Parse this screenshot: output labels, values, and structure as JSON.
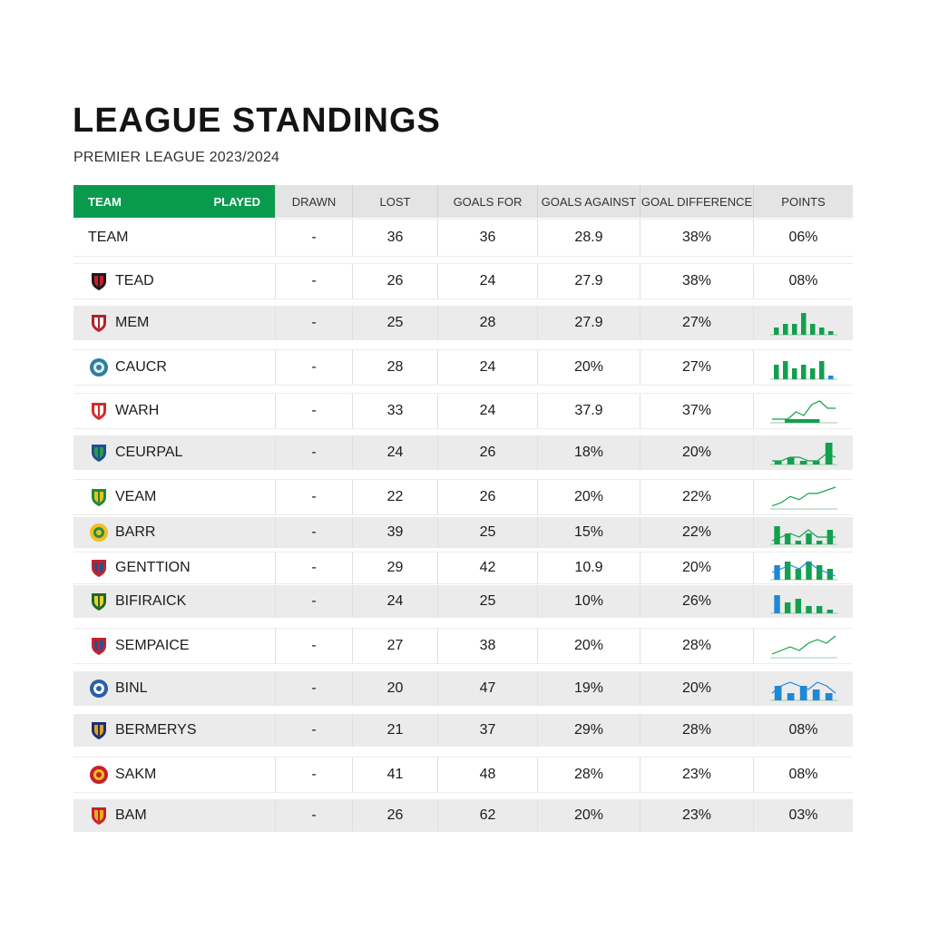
{
  "page": {
    "title": "LEAGUE STANDINGS",
    "subtitle": "PREMIER LEAGUE 2023/2024"
  },
  "colors": {
    "accent_green": "#0a9a4d",
    "spark_green": "#12a04e",
    "spark_blue": "#1e88d6",
    "header_gray": "#e4e4e4",
    "row_shade": "#ebebeb"
  },
  "table": {
    "headers": {
      "team": "TEAM",
      "played": "PLAYED",
      "drawn": "DRAWN",
      "lost": "LOST",
      "goals_for": "GOALS FOR",
      "goals_against": "GOALS AGAINST",
      "goal_difference": "GOAL DIFFERENCE",
      "points": "POINTS"
    },
    "rows": [
      {
        "team": "TEAM",
        "crest": "none",
        "drawn": "-",
        "lost": "36",
        "goals_for": "36",
        "goals_against": "28.9",
        "goal_difference": "38%",
        "points": "06%",
        "spark": null
      },
      {
        "team": "TEAD",
        "crest": "shield-black-red-crest-icon",
        "drawn": "-",
        "lost": "26",
        "goals_for": "24",
        "goals_against": "27.9",
        "goal_difference": "38%",
        "points": "08%",
        "spark": null
      },
      {
        "team": "MEM",
        "crest": "shield-red-cross-crest-icon",
        "drawn": "-",
        "lost": "25",
        "goals_for": "28",
        "goals_against": "27.9",
        "goal_difference": "27%",
        "points": "",
        "spark": {
          "type": "bars",
          "values": [
            2,
            3,
            3,
            6,
            3,
            2,
            1
          ],
          "blue_last": false
        }
      },
      {
        "team": "CAUCR",
        "crest": "round-blue-crest-icon",
        "drawn": "-",
        "lost": "28",
        "goals_for": "24",
        "goals_against": "20%",
        "goal_difference": "27%",
        "points": "",
        "spark": {
          "type": "bars",
          "values": [
            4,
            5,
            3,
            4,
            3,
            5,
            1
          ],
          "blue_last": true
        }
      },
      {
        "team": "WARH",
        "crest": "red-cockerel-crest-icon",
        "drawn": "-",
        "lost": "33",
        "goals_for": "24",
        "goals_against": "37.9",
        "goal_difference": "37%",
        "points": "",
        "spark": {
          "type": "line",
          "values": [
            1,
            1,
            1,
            3,
            2,
            5,
            6,
            4,
            4
          ],
          "bars": [
            1
          ]
        }
      },
      {
        "team": "CEURPAL",
        "crest": "shield-blue-green-crest-icon",
        "drawn": "-",
        "lost": "24",
        "goals_for": "26",
        "goals_against": "18%",
        "goal_difference": "20%",
        "points": "",
        "spark": {
          "type": "mixed",
          "values": [
            1,
            1,
            2,
            2,
            1,
            1,
            3,
            2
          ],
          "bars": [
            1,
            2,
            1,
            1,
            6
          ]
        }
      },
      {
        "team": "VEAM",
        "crest": "shield-green-yellow-crest-icon",
        "drawn": "-",
        "lost": "22",
        "goals_for": "26",
        "goals_against": "20%",
        "goal_difference": "22%",
        "points": "",
        "spark": {
          "type": "line",
          "values": [
            1,
            2,
            4,
            3,
            5,
            5,
            6,
            7
          ],
          "bars": []
        }
      },
      {
        "team": "BARR",
        "crest": "round-yellow-crest-icon",
        "drawn": "-",
        "lost": "39",
        "goals_for": "25",
        "goals_against": "15%",
        "goal_difference": "22%",
        "points": "",
        "spark": {
          "type": "mixed",
          "values": [
            1,
            2,
            3,
            2,
            4,
            2,
            2,
            2
          ],
          "bars": [
            5,
            3,
            1,
            3,
            1,
            4
          ]
        }
      },
      {
        "team": "GENTTION",
        "crest": "shield-red-blue-crest-icon",
        "drawn": "-",
        "lost": "29",
        "goals_for": "42",
        "goals_against": "10.9",
        "goal_difference": "20%",
        "points": "",
        "spark": {
          "type": "mixed",
          "values": [
            2,
            3,
            4,
            3,
            5,
            3,
            2,
            1
          ],
          "bars": [
            4,
            5,
            3,
            5,
            4,
            3
          ],
          "blue_first": true
        }
      },
      {
        "team": "BIFIRAICK",
        "crest": "shield-green-crest-icon",
        "drawn": "-",
        "lost": "24",
        "goals_for": "25",
        "goals_against": "10%",
        "goal_difference": "26%",
        "points": "",
        "spark": {
          "type": "bars",
          "values": [
            5,
            3,
            4,
            2,
            2,
            1
          ],
          "blue_first": true
        }
      },
      {
        "team": "SEMPAICE",
        "crest": "shield-striped-crest-icon",
        "drawn": "-",
        "lost": "27",
        "goals_for": "38",
        "goals_against": "20%",
        "goal_difference": "28%",
        "points": "",
        "spark": {
          "type": "line",
          "values": [
            1,
            2,
            3,
            2,
            4,
            5,
            4,
            6
          ],
          "bars": []
        }
      },
      {
        "team": "BINL",
        "crest": "round-blue-white-crest-icon",
        "drawn": "-",
        "lost": "20",
        "goals_for": "47",
        "goals_against": "19%",
        "goal_difference": "20%",
        "points": "",
        "spark": {
          "type": "mixed",
          "values": [
            2,
            4,
            5,
            4,
            3,
            5,
            4,
            2
          ],
          "bars": [
            4,
            2,
            4,
            3,
            2
          ],
          "blue_all": true
        }
      },
      {
        "team": "BERMERYS",
        "crest": "shield-navy-crest-icon",
        "drawn": "-",
        "lost": "21",
        "goals_for": "37",
        "goals_against": "29%",
        "goal_difference": "28%",
        "points": "08%",
        "spark": null
      },
      {
        "team": "SAKM",
        "crest": "round-red-crest-icon",
        "drawn": "-",
        "lost": "41",
        "goals_for": "48",
        "goals_against": "28%",
        "goal_difference": "23%",
        "points": "08%",
        "spark": null
      },
      {
        "team": "BAM",
        "crest": "shield-red-gold-crest-icon",
        "drawn": "-",
        "lost": "26",
        "goals_for": "62",
        "goals_against": "20%",
        "goal_difference": "23%",
        "points": "03%",
        "spark": null
      }
    ]
  }
}
